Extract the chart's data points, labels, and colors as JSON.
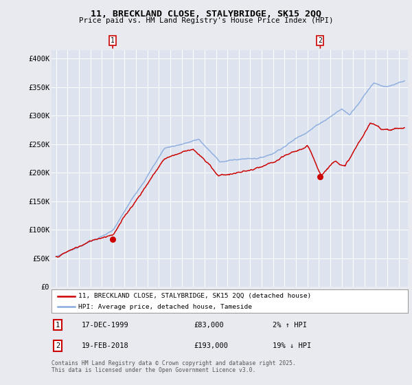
{
  "title": "11, BRECKLAND CLOSE, STALYBRIDGE, SK15 2QQ",
  "subtitle": "Price paid vs. HM Land Registry's House Price Index (HPI)",
  "ylabel_ticks": [
    "£0",
    "£50K",
    "£100K",
    "£150K",
    "£200K",
    "£250K",
    "£300K",
    "£350K",
    "£400K"
  ],
  "ytick_values": [
    0,
    50000,
    100000,
    150000,
    200000,
    250000,
    300000,
    350000,
    400000
  ],
  "ylim": [
    0,
    415000
  ],
  "xlim_start": 1994.6,
  "xlim_end": 2025.8,
  "purchase1_x": 1999.96,
  "purchase1_y": 83000,
  "purchase2_x": 2018.13,
  "purchase2_y": 193000,
  "legend_line1": "11, BRECKLAND CLOSE, STALYBRIDGE, SK15 2QQ (detached house)",
  "legend_line2": "HPI: Average price, detached house, Tameside",
  "footnote": "Contains HM Land Registry data © Crown copyright and database right 2025.\nThis data is licensed under the Open Government Licence v3.0.",
  "color_price": "#cc0000",
  "color_hpi": "#88aadd",
  "background_color": "#e8eaf0",
  "plot_bg": "#dde4f0",
  "grid_color": "#ffffff"
}
